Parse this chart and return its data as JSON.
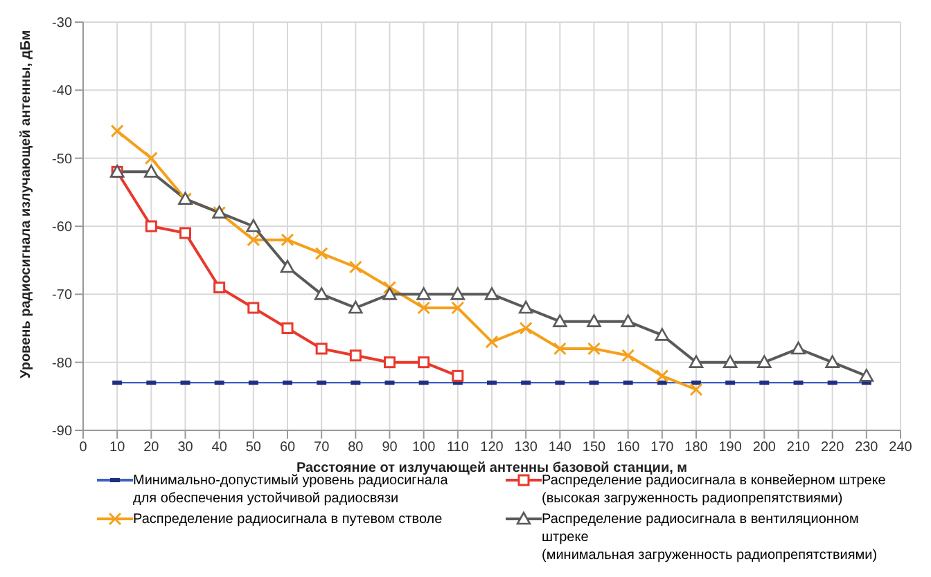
{
  "chart_data": {
    "type": "line",
    "xlabel": "Расстояние от излучающей антенны базовой станции, м",
    "ylabel": "Уровень радиосигнала излучающей антенны, дБм",
    "x": [
      10,
      20,
      30,
      40,
      50,
      60,
      70,
      80,
      90,
      100,
      110,
      120,
      130,
      140,
      150,
      160,
      170,
      180,
      190,
      200,
      210,
      220,
      230
    ],
    "series": [
      {
        "name": "Минимально-допустимый уровень радиосигнала\nдля обеспечения  устойчивой радиосвязи",
        "color": "#3f5fbf",
        "marker": "square",
        "values": [
          -83,
          -83,
          -83,
          -83,
          -83,
          -83,
          -83,
          -83,
          -83,
          -83,
          -83,
          -83,
          -83,
          -83,
          -83,
          -83,
          -83,
          -83,
          -83,
          -83,
          -83,
          -83,
          -83
        ]
      },
      {
        "name": "Распределение радиосигнала в конвейерном штреке\n(высокая загруженность радиопрепятствиями)",
        "color": "#e8392c",
        "marker": "square",
        "values": [
          -52,
          -60,
          -61,
          -69,
          -72,
          -75,
          -78,
          -79,
          -80,
          -80,
          -82,
          null,
          null,
          null,
          null,
          null,
          null,
          null,
          null,
          null,
          null,
          null,
          null
        ]
      },
      {
        "name": "Распределение радиосигнала в путевом стволе",
        "color": "#f5a01a",
        "marker": "cross",
        "values": [
          -46,
          -50,
          -56,
          -58,
          -62,
          -62,
          -64,
          -66,
          -69,
          -72,
          -72,
          -77,
          -75,
          -78,
          -78,
          -79,
          -82,
          -84,
          null,
          null,
          null,
          null,
          null
        ]
      },
      {
        "name": "Распределение радиосигнала в вентиляционном штреке\n(минимальная загруженность радиопрепятствиями)",
        "color": "#5a5a5a",
        "marker": "triangle",
        "values": [
          -52,
          -52,
          -56,
          -58,
          -60,
          -66,
          -70,
          -72,
          -70,
          -70,
          -70,
          -70,
          -72,
          -74,
          -74,
          -74,
          -76,
          -80,
          -80,
          -80,
          -78,
          -80,
          -82
        ]
      }
    ],
    "xlim": [
      0,
      240
    ],
    "xticks": [
      0,
      10,
      20,
      30,
      40,
      50,
      60,
      70,
      80,
      90,
      100,
      110,
      120,
      130,
      140,
      150,
      160,
      170,
      180,
      190,
      200,
      210,
      220,
      230,
      240
    ],
    "ylim": [
      -90,
      -30
    ],
    "yticks": [
      -90,
      -80,
      -70,
      -60,
      -50,
      -40,
      -30
    ],
    "grid": true,
    "legend": "bottom",
    "line_style": "solid"
  }
}
